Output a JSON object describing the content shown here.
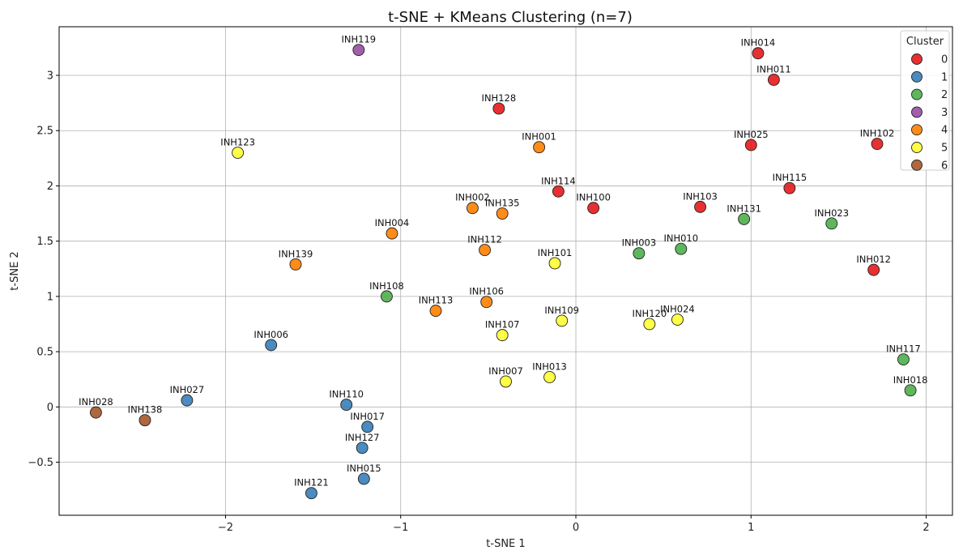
{
  "chart_data": {
    "type": "scatter",
    "title": "t-SNE + KMeans Clustering (n=7)",
    "xlabel": "t-SNE 1",
    "ylabel": "t-SNE 2",
    "xlim": [
      -2.95,
      2.15
    ],
    "ylim": [
      -0.98,
      3.44
    ],
    "xticks": [
      -2,
      -1,
      0,
      1,
      2
    ],
    "yticks": [
      -0.5,
      0.0,
      0.5,
      1.0,
      1.5,
      2.0,
      2.5,
      3.0
    ],
    "grid": true,
    "legend": {
      "title": "Cluster",
      "placement": "top-right"
    },
    "clusters": [
      {
        "name": "0",
        "color": "#e41a1c"
      },
      {
        "name": "1",
        "color": "#377eb8"
      },
      {
        "name": "2",
        "color": "#4daf4a"
      },
      {
        "name": "3",
        "color": "#984ea3"
      },
      {
        "name": "4",
        "color": "#ff7f00"
      },
      {
        "name": "5",
        "color": "#ffff33"
      },
      {
        "name": "6",
        "color": "#a65628"
      }
    ],
    "points": [
      {
        "label": "INH014",
        "x": 1.04,
        "y": 3.2,
        "cluster": 0
      },
      {
        "label": "INH011",
        "x": 1.13,
        "y": 2.96,
        "cluster": 0
      },
      {
        "label": "INH128",
        "x": -0.44,
        "y": 2.7,
        "cluster": 0
      },
      {
        "label": "INH025",
        "x": 1.0,
        "y": 2.37,
        "cluster": 0
      },
      {
        "label": "INH102",
        "x": 1.72,
        "y": 2.38,
        "cluster": 0
      },
      {
        "label": "INH115",
        "x": 1.22,
        "y": 1.98,
        "cluster": 0
      },
      {
        "label": "INH114",
        "x": -0.1,
        "y": 1.95,
        "cluster": 0
      },
      {
        "label": "INH100",
        "x": 0.1,
        "y": 1.8,
        "cluster": 0
      },
      {
        "label": "INH103",
        "x": 0.71,
        "y": 1.81,
        "cluster": 0
      },
      {
        "label": "INH012",
        "x": 1.7,
        "y": 1.24,
        "cluster": 0
      },
      {
        "label": "INH006",
        "x": -1.74,
        "y": 0.56,
        "cluster": 1
      },
      {
        "label": "INH027",
        "x": -2.22,
        "y": 0.06,
        "cluster": 1
      },
      {
        "label": "INH110",
        "x": -1.31,
        "y": 0.02,
        "cluster": 1
      },
      {
        "label": "INH017",
        "x": -1.19,
        "y": -0.18,
        "cluster": 1
      },
      {
        "label": "INH127",
        "x": -1.22,
        "y": -0.37,
        "cluster": 1
      },
      {
        "label": "INH015",
        "x": -1.21,
        "y": -0.65,
        "cluster": 1
      },
      {
        "label": "INH121",
        "x": -1.51,
        "y": -0.78,
        "cluster": 1
      },
      {
        "label": "INH131",
        "x": 0.96,
        "y": 1.7,
        "cluster": 2
      },
      {
        "label": "INH023",
        "x": 1.46,
        "y": 1.66,
        "cluster": 2
      },
      {
        "label": "INH003",
        "x": 0.36,
        "y": 1.39,
        "cluster": 2
      },
      {
        "label": "INH010",
        "x": 0.6,
        "y": 1.43,
        "cluster": 2
      },
      {
        "label": "INH108",
        "x": -1.08,
        "y": 1.0,
        "cluster": 2
      },
      {
        "label": "INH117",
        "x": 1.87,
        "y": 0.43,
        "cluster": 2
      },
      {
        "label": "INH018",
        "x": 1.91,
        "y": 0.15,
        "cluster": 2
      },
      {
        "label": "INH119",
        "x": -1.24,
        "y": 3.23,
        "cluster": 3
      },
      {
        "label": "INH001",
        "x": -0.21,
        "y": 2.35,
        "cluster": 4
      },
      {
        "label": "INH002",
        "x": -0.59,
        "y": 1.8,
        "cluster": 4
      },
      {
        "label": "INH135",
        "x": -0.42,
        "y": 1.75,
        "cluster": 4
      },
      {
        "label": "INH004",
        "x": -1.05,
        "y": 1.57,
        "cluster": 4
      },
      {
        "label": "INH112",
        "x": -0.52,
        "y": 1.42,
        "cluster": 4
      },
      {
        "label": "INH139",
        "x": -1.6,
        "y": 1.29,
        "cluster": 4
      },
      {
        "label": "INH113",
        "x": -0.8,
        "y": 0.87,
        "cluster": 4
      },
      {
        "label": "INH106",
        "x": -0.51,
        "y": 0.95,
        "cluster": 4
      },
      {
        "label": "INH123",
        "x": -1.93,
        "y": 2.3,
        "cluster": 5
      },
      {
        "label": "INH101",
        "x": -0.12,
        "y": 1.3,
        "cluster": 5
      },
      {
        "label": "INH109",
        "x": -0.08,
        "y": 0.78,
        "cluster": 5
      },
      {
        "label": "INH120",
        "x": 0.42,
        "y": 0.75,
        "cluster": 5
      },
      {
        "label": "INH024",
        "x": 0.58,
        "y": 0.79,
        "cluster": 5
      },
      {
        "label": "INH107",
        "x": -0.42,
        "y": 0.65,
        "cluster": 5
      },
      {
        "label": "INH007",
        "x": -0.4,
        "y": 0.23,
        "cluster": 5
      },
      {
        "label": "INH013",
        "x": -0.15,
        "y": 0.27,
        "cluster": 5
      },
      {
        "label": "INH028",
        "x": -2.74,
        "y": -0.05,
        "cluster": 6
      },
      {
        "label": "INH138",
        "x": -2.46,
        "y": -0.12,
        "cluster": 6
      }
    ]
  }
}
